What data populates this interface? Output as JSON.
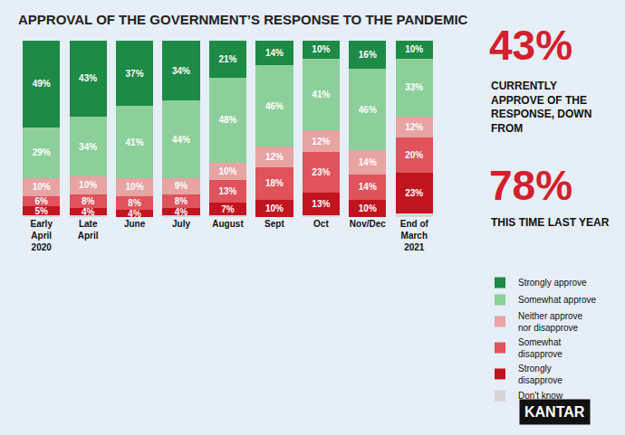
{
  "chart_data": {
    "type": "bar",
    "title": "APPROVAL OF THE GOVERNMENT’S RESPONSE TO THE PANDEMIC",
    "stacked": true,
    "data_labels": true,
    "tick_labels": "x",
    "grid": false,
    "legend": "right",
    "ylim": [
      0,
      100
    ],
    "categories": [
      "Early April 2020",
      "Late April",
      "June",
      "July",
      "August",
      "Sept",
      "Oct",
      "Nov/Dec",
      "End of March 2021"
    ],
    "series": [
      {
        "name": "Strongly approve",
        "color": "#1d8a45",
        "values": [
          49,
          43,
          37,
          34,
          21,
          14,
          10,
          16,
          10
        ],
        "value_labels": [
          "49%",
          "43%",
          "37%",
          "34%",
          "21%",
          "14%",
          "10%",
          "16%",
          "10%"
        ]
      },
      {
        "name": "Somewhat approve",
        "color": "#8ccf9a",
        "values": [
          29,
          34,
          41,
          44,
          48,
          46,
          41,
          46,
          33
        ],
        "value_labels": [
          "29%",
          "34%",
          "41%",
          "44%",
          "48%",
          "46%",
          "41%",
          "46%",
          "33%"
        ]
      },
      {
        "name": "Neither approve nor disapprove",
        "color": "#e8a3a3",
        "values": [
          10,
          10,
          10,
          9,
          10,
          12,
          12,
          14,
          12
        ],
        "value_labels": [
          "10%",
          "10%",
          "10%",
          "9%",
          "10%",
          "12%",
          "12%",
          "14%",
          "12%"
        ]
      },
      {
        "name": "Somewhat disapprove",
        "color": "#e0525c",
        "values": [
          6,
          8,
          8,
          8,
          13,
          18,
          23,
          14,
          20
        ],
        "value_labels": [
          "6%",
          "8%",
          "8%",
          "8%",
          "13%",
          "18%",
          "23%",
          "14%",
          "20%"
        ]
      },
      {
        "name": "Strongly disapprove",
        "color": "#c0141f",
        "values": [
          5,
          4,
          4,
          4,
          7,
          10,
          13,
          10,
          23
        ],
        "value_labels": [
          "5%",
          "4%",
          "4%",
          "4%",
          "7%",
          "10%",
          "13%",
          "10%",
          "23%"
        ]
      },
      {
        "name": "Don't know",
        "color": "#d6d6d6",
        "values": [
          1,
          1,
          0,
          1,
          1,
          0,
          1,
          0,
          2
        ]
      }
    ],
    "annotations": [
      "43%",
      "CURRENTLY APPROVE OF THE RESPONSE, DOWN FROM",
      "78%",
      "THIS TIME LAST YEAR",
      "KANTAR"
    ]
  }
}
